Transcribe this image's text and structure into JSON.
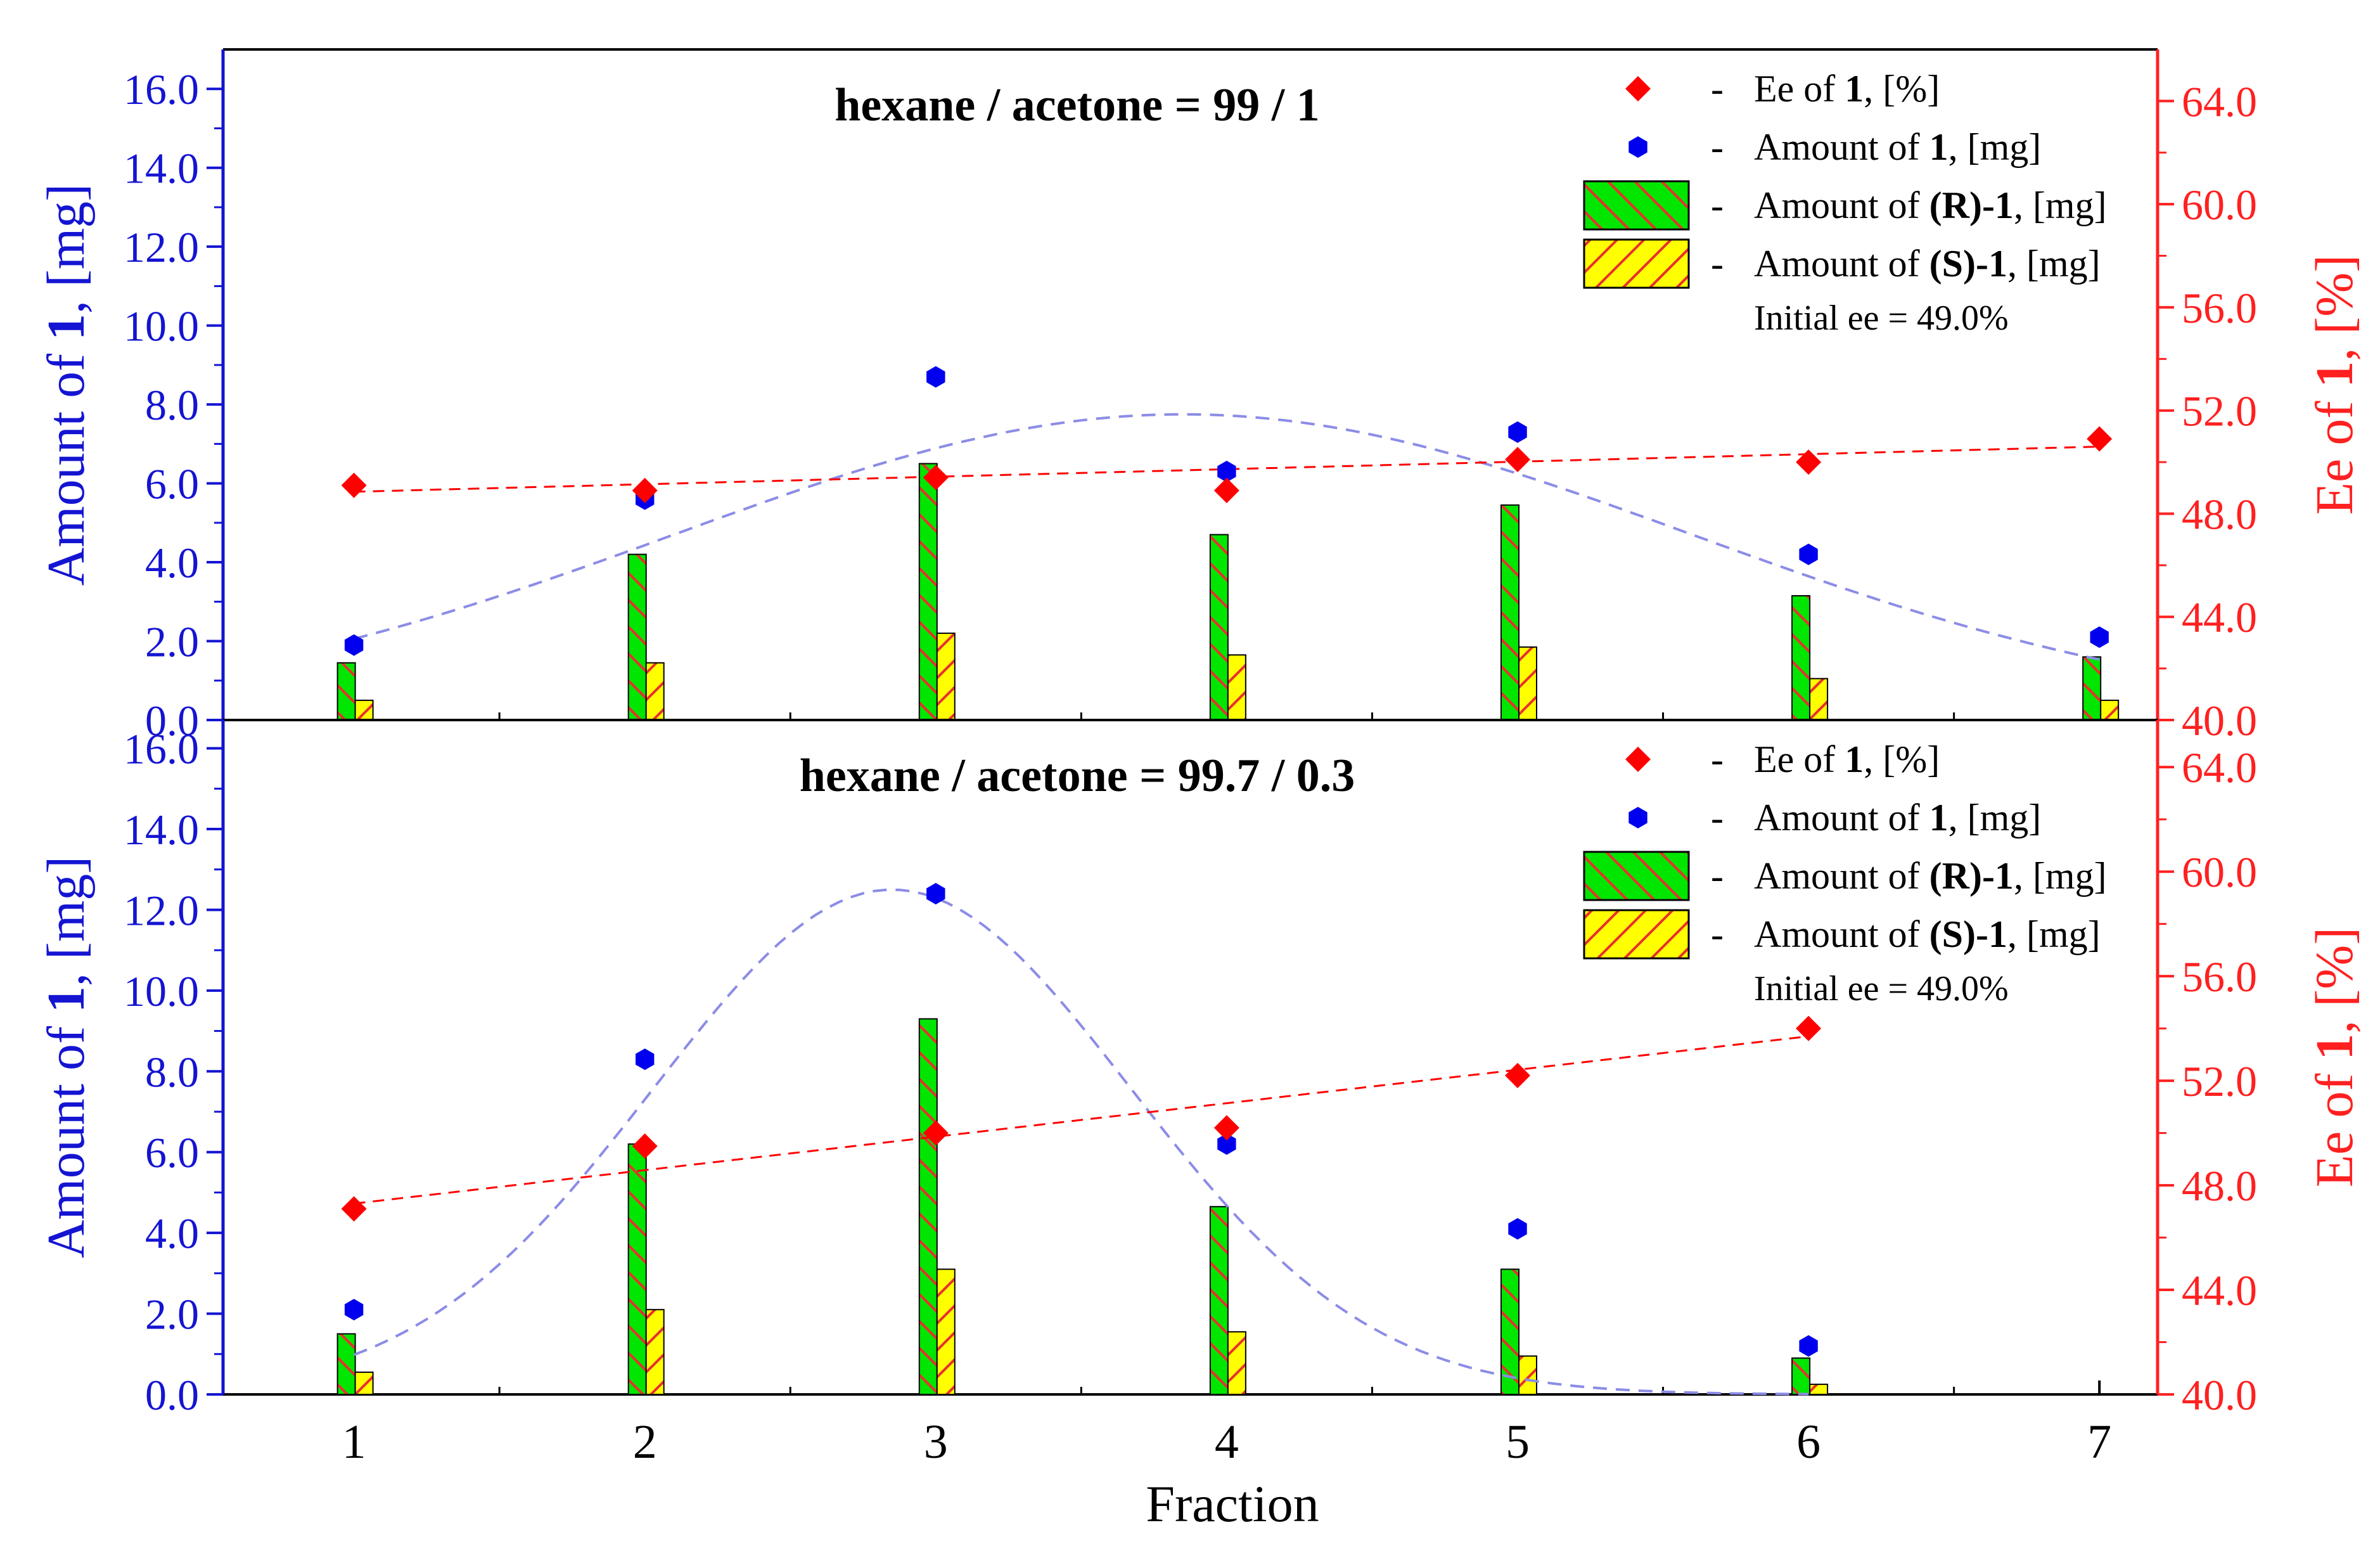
{
  "colors": {
    "left_axis": "#1414d2",
    "right_axis": "#ff2020",
    "ee_marker": "#ff0000",
    "amount_marker": "#0000ee",
    "fit_line": "#8c8ce6",
    "r_fill": "#00e600",
    "s_fill": "#ffff00",
    "hatch": "#e83030",
    "frame": "#000000"
  },
  "chart_data": [
    {
      "type": "bar",
      "panel": "top",
      "title": "hexane / acetone = 99 / 1",
      "xlabel": "Fraction",
      "ylabel_left": "Amount of 1, [mg]",
      "ylabel_right": "Ee of 1, [%]",
      "categories": [
        "1",
        "2",
        "3",
        "4",
        "5",
        "6",
        "7"
      ],
      "xlim": [
        0.55,
        7.2
      ],
      "ylim_left": [
        0,
        17.0
      ],
      "ylim_right": [
        40.0,
        66.0
      ],
      "left_ticks": [
        "0.0",
        "2.0",
        "4.0",
        "6.0",
        "8.0",
        "10.0",
        "12.0",
        "14.0",
        "16.0"
      ],
      "right_ticks": [
        "40.0",
        "44.0",
        "48.0",
        "52.0",
        "56.0",
        "60.0",
        "64.0"
      ],
      "series": [
        {
          "name": "Amount of (R)-1, [mg]",
          "kind": "bar",
          "axis": "left",
          "values": [
            1.45,
            4.2,
            6.5,
            4.7,
            5.45,
            3.15,
            1.6
          ]
        },
        {
          "name": "Amount of (S)-1, [mg]",
          "kind": "bar",
          "axis": "left",
          "values": [
            0.5,
            1.45,
            2.2,
            1.65,
            1.85,
            1.05,
            0.5
          ]
        },
        {
          "name": "Amount of 1, [mg]",
          "kind": "scatter",
          "axis": "left",
          "values": [
            1.9,
            5.6,
            8.7,
            6.3,
            7.3,
            4.2,
            2.1
          ]
        },
        {
          "name": "Ee of 1, [%]",
          "kind": "scatter",
          "axis": "right",
          "values": [
            49.1,
            48.9,
            49.4,
            48.9,
            50.1,
            50.0,
            50.9
          ]
        }
      ],
      "fits": [
        {
          "name": "Amount fit",
          "kind": "gaussian",
          "axis": "left",
          "center": 3.85,
          "height": 7.75,
          "width": 1.75,
          "x_range": [
            1,
            7
          ]
        },
        {
          "name": "Ee fit",
          "kind": "linear",
          "axis": "right",
          "x": [
            1,
            7
          ],
          "y": [
            48.85,
            50.6
          ]
        }
      ],
      "legend_labels": [
        "Ee of 1, [%]",
        "Amount of 1, [mg]",
        "Amount of (R)-1, [mg]",
        "Amount of (S)-1, [mg]"
      ],
      "initial_ee": "Initial ee = 49.0%"
    },
    {
      "type": "bar",
      "panel": "bottom",
      "title": "hexane / acetone = 99.7 / 0.3",
      "xlabel": "Fraction",
      "ylabel_left": "Amount of 1, [mg]",
      "ylabel_right": "Ee of 1, [%]",
      "categories": [
        "1",
        "2",
        "3",
        "4",
        "5",
        "6",
        "7"
      ],
      "xlim": [
        0.55,
        7.2
      ],
      "ylim_left": [
        0,
        16.7
      ],
      "ylim_right": [
        40.0,
        65.8
      ],
      "left_ticks": [
        "0.0",
        "2.0",
        "4.0",
        "6.0",
        "8.0",
        "10.0",
        "12.0",
        "14.0",
        "16.0"
      ],
      "right_ticks": [
        "40.0",
        "44.0",
        "48.0",
        "52.0",
        "56.0",
        "60.0",
        "64.0"
      ],
      "series": [
        {
          "name": "Amount of (R)-1, [mg]",
          "kind": "bar",
          "axis": "left",
          "values": [
            1.5,
            6.2,
            9.3,
            4.65,
            3.1,
            0.9,
            null
          ]
        },
        {
          "name": "Amount of (S)-1, [mg]",
          "kind": "bar",
          "axis": "left",
          "values": [
            0.55,
            2.1,
            3.1,
            1.55,
            0.95,
            0.25,
            null
          ]
        },
        {
          "name": "Amount of 1, [mg]",
          "kind": "scatter",
          "axis": "left",
          "values": [
            2.1,
            8.3,
            12.4,
            6.2,
            4.1,
            1.2,
            null
          ]
        },
        {
          "name": "Ee of 1, [%]",
          "kind": "scatter",
          "axis": "right",
          "values": [
            47.1,
            49.5,
            50.0,
            50.2,
            52.2,
            54.0,
            null
          ]
        }
      ],
      "fits": [
        {
          "name": "Amount fit",
          "kind": "gaussian",
          "axis": "left",
          "center": 2.85,
          "height": 12.5,
          "width": 0.82,
          "x_range": [
            1,
            6
          ]
        },
        {
          "name": "Ee fit",
          "kind": "linear",
          "axis": "right",
          "x": [
            1,
            6
          ],
          "y": [
            47.3,
            53.7
          ]
        }
      ],
      "legend_labels": [
        "Ee of 1, [%]",
        "Amount of 1, [mg]",
        "Amount of (R)-1, [mg]",
        "Amount of (S)-1, [mg]"
      ],
      "initial_ee": "Initial ee = 49.0%"
    }
  ]
}
